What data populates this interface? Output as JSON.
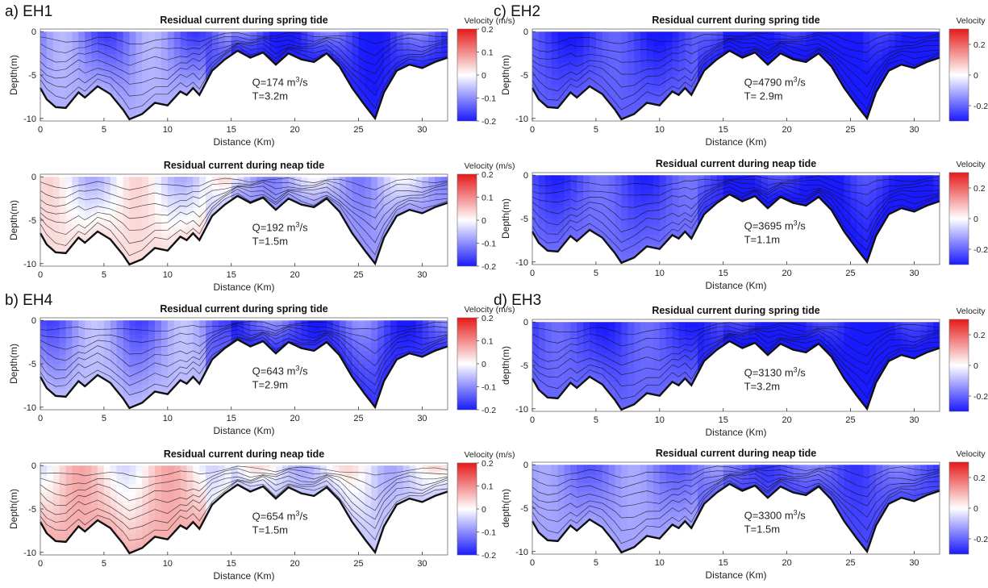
{
  "groups": [
    {
      "label": "a) EH1"
    },
    {
      "label": "c) EH2"
    },
    {
      "label": "b) EH4"
    },
    {
      "label": "d) EH3"
    }
  ],
  "chart_data": [
    {
      "type": "heatmap",
      "title": "Residual current during spring tide",
      "xlabel": "Distance (Km)",
      "ylabel": "Depth(m)",
      "xlim": [
        0,
        32
      ],
      "ylim": [
        -10.3,
        0.3
      ],
      "xticks": [
        0,
        5,
        10,
        15,
        20,
        25,
        30
      ],
      "yticks": [
        0,
        -5,
        -10
      ],
      "colorbar": {
        "label": "Velocity (m/s)",
        "range": [
          -0.2,
          0.2
        ],
        "ticks": [
          "0.2",
          "0.1",
          "0",
          "-0.1",
          "-0.2"
        ]
      },
      "annotation": {
        "q_value": "174",
        "q_unit": "m",
        "q_sup": "3",
        "q_tail": "/s",
        "t_text": "T=3.2m"
      },
      "mean": -0.12
    },
    {
      "type": "heatmap",
      "title": "Residual current during neap tide",
      "xlabel": "Distance (Km)",
      "ylabel": "Depth(m)",
      "xlim": [
        0,
        32
      ],
      "ylim": [
        -10.3,
        0.3
      ],
      "xticks": [
        0,
        5,
        10,
        15,
        20,
        25,
        30
      ],
      "yticks": [
        0,
        -5,
        -10
      ],
      "colorbar": {
        "label": "Velocity (m/s)",
        "range": [
          -0.2,
          0.2
        ],
        "ticks": [
          "0.2",
          "0.1",
          "0",
          "-0.1",
          "-0.2"
        ]
      },
      "annotation": {
        "q_value": "192",
        "q_unit": "m",
        "q_sup": "3",
        "q_tail": "/s",
        "t_text": "T=1.5m"
      },
      "mean": -0.02
    },
    {
      "type": "heatmap",
      "title": "Residual current during spring tide",
      "xlabel": "Distance (Km)",
      "ylabel": "Depth(m)",
      "xlim": [
        0,
        32
      ],
      "ylim": [
        -10.3,
        0.3
      ],
      "xticks": [
        0,
        5,
        10,
        15,
        20,
        25,
        30
      ],
      "yticks": [
        0,
        -5,
        -10
      ],
      "colorbar": {
        "label": "Velocity (m/s)",
        "range": [
          -0.3,
          0.3
        ],
        "ticks": [
          "0.2",
          "0",
          "-0.2"
        ]
      },
      "annotation": {
        "q_value": "4790",
        "q_unit": "m",
        "q_sup": "3",
        "q_tail": "/s",
        "t_text": "T= 2.9m"
      },
      "mean": -0.26
    },
    {
      "type": "heatmap",
      "title": "Residual current during neap tide",
      "xlabel": "Distance (Km)",
      "ylabel": "Depth(m)",
      "xlim": [
        0,
        32
      ],
      "ylim": [
        -10.3,
        0.3
      ],
      "xticks": [
        0,
        5,
        10,
        15,
        20,
        25,
        30
      ],
      "yticks": [
        0,
        -5,
        -10
      ],
      "colorbar": {
        "label": "Velocity (m/s)",
        "range": [
          -0.3,
          0.3
        ],
        "ticks": [
          "0.2",
          "0",
          "-0.2"
        ]
      },
      "annotation": {
        "q_value": "3695",
        "q_unit": "m",
        "q_sup": "3",
        "q_tail": "/s",
        "t_text": "T=1.1m"
      },
      "mean": -0.24
    },
    {
      "type": "heatmap",
      "title": "Residual current during spring tide",
      "xlabel": "Distance (Km)",
      "ylabel": "Depth(m)",
      "xlim": [
        0,
        32
      ],
      "ylim": [
        -10.3,
        0.3
      ],
      "xticks": [
        0,
        5,
        10,
        15,
        20,
        25,
        30
      ],
      "yticks": [
        0,
        -5,
        -10
      ],
      "colorbar": {
        "label": "Velocity (m/s)",
        "range": [
          -0.2,
          0.2
        ],
        "ticks": [
          "0.2",
          "0.1",
          "0",
          "-0.1",
          "-0.2"
        ]
      },
      "annotation": {
        "q_value": "643",
        "q_unit": "m",
        "q_sup": "3",
        "q_tail": "/s",
        "t_text": "T=2.9m"
      },
      "mean": -0.11
    },
    {
      "type": "heatmap",
      "title": "Residual current during neap tide",
      "xlabel": "Distance (Km)",
      "ylabel": "Depth(m)",
      "xlim": [
        0,
        32
      ],
      "ylim": [
        -10.3,
        0.3
      ],
      "xticks": [
        0,
        5,
        10,
        15,
        20,
        25,
        30
      ],
      "yticks": [
        0,
        -5,
        -10
      ],
      "colorbar": {
        "label": "Velocity (m/s)",
        "range": [
          -0.2,
          0.2
        ],
        "ticks": [
          "0.2",
          "0.1",
          "0",
          "-0.1",
          "-0.2"
        ]
      },
      "annotation": {
        "q_value": "654",
        "q_unit": "m",
        "q_sup": "3",
        "q_tail": "/s",
        "t_text": "T=1.5m"
      },
      "mean": 0.02
    },
    {
      "type": "heatmap",
      "title": "Residual current during spring tide",
      "xlabel": "Distance (Km)",
      "ylabel": "depth(m)",
      "xlim": [
        0,
        32
      ],
      "ylim": [
        -10.3,
        0.3
      ],
      "xticks": [
        0,
        5,
        10,
        15,
        20,
        25,
        30
      ],
      "yticks": [
        0,
        -5,
        -10
      ],
      "colorbar": {
        "label": "Velocity (m/s)",
        "range": [
          -0.3,
          0.3
        ],
        "ticks": [
          "0.2",
          "0",
          "-0.2"
        ]
      },
      "annotation": {
        "q_value": "3130",
        "q_unit": "m",
        "q_sup": "3",
        "q_tail": "/s",
        "t_text": "T=3.2m"
      },
      "mean": -0.25
    },
    {
      "type": "heatmap",
      "title": "Residual current during neap tide",
      "xlabel": "Distance (Km)",
      "ylabel": "depth(m)",
      "xlim": [
        0,
        32
      ],
      "ylim": [
        -10.3,
        0.3
      ],
      "xticks": [
        0,
        5,
        10,
        15,
        20,
        25,
        30
      ],
      "yticks": [
        0,
        -5,
        -10
      ],
      "colorbar": {
        "label": "Velocity (m/s)",
        "range": [
          -0.3,
          0.3
        ],
        "ticks": [
          "0.2",
          "0",
          "-0.2"
        ]
      },
      "annotation": {
        "q_value": "3300",
        "q_unit": "m",
        "q_sup": "3",
        "q_tail": "/s",
        "t_text": "T=1.5m"
      },
      "mean": -0.17
    }
  ],
  "bathymetry": {
    "x": [
      0,
      0.5,
      1.2,
      2,
      3,
      3.5,
      4.5,
      5.5,
      6.5,
      7,
      8,
      9,
      10,
      11,
      11.5,
      12,
      12.5,
      13.5,
      14.5,
      15.5,
      16.5,
      17.5,
      18.5,
      19.5,
      20.5,
      21.5,
      22.5,
      23.5,
      24.5,
      25.5,
      26.3,
      27,
      28,
      29,
      30,
      31,
      32
    ],
    "depth": [
      -6.5,
      -7.8,
      -8.7,
      -8.8,
      -7.0,
      -7.6,
      -6.3,
      -7.2,
      -9.0,
      -10.1,
      -9.5,
      -8.2,
      -8.5,
      -6.9,
      -7.3,
      -6.5,
      -7.3,
      -4.5,
      -3.2,
      -2.2,
      -3.0,
      -2.4,
      -3.8,
      -2.5,
      -3.2,
      -3.5,
      -2.5,
      -4.0,
      -6.5,
      -8.5,
      -10.0,
      -7.0,
      -4.5,
      -3.8,
      -4.2,
      -3.5,
      -3.0
    ]
  },
  "colors": {
    "negative": "#1a1aff",
    "zero": "#ffffff",
    "positive": "#e61a1a",
    "contour": "#111111"
  }
}
